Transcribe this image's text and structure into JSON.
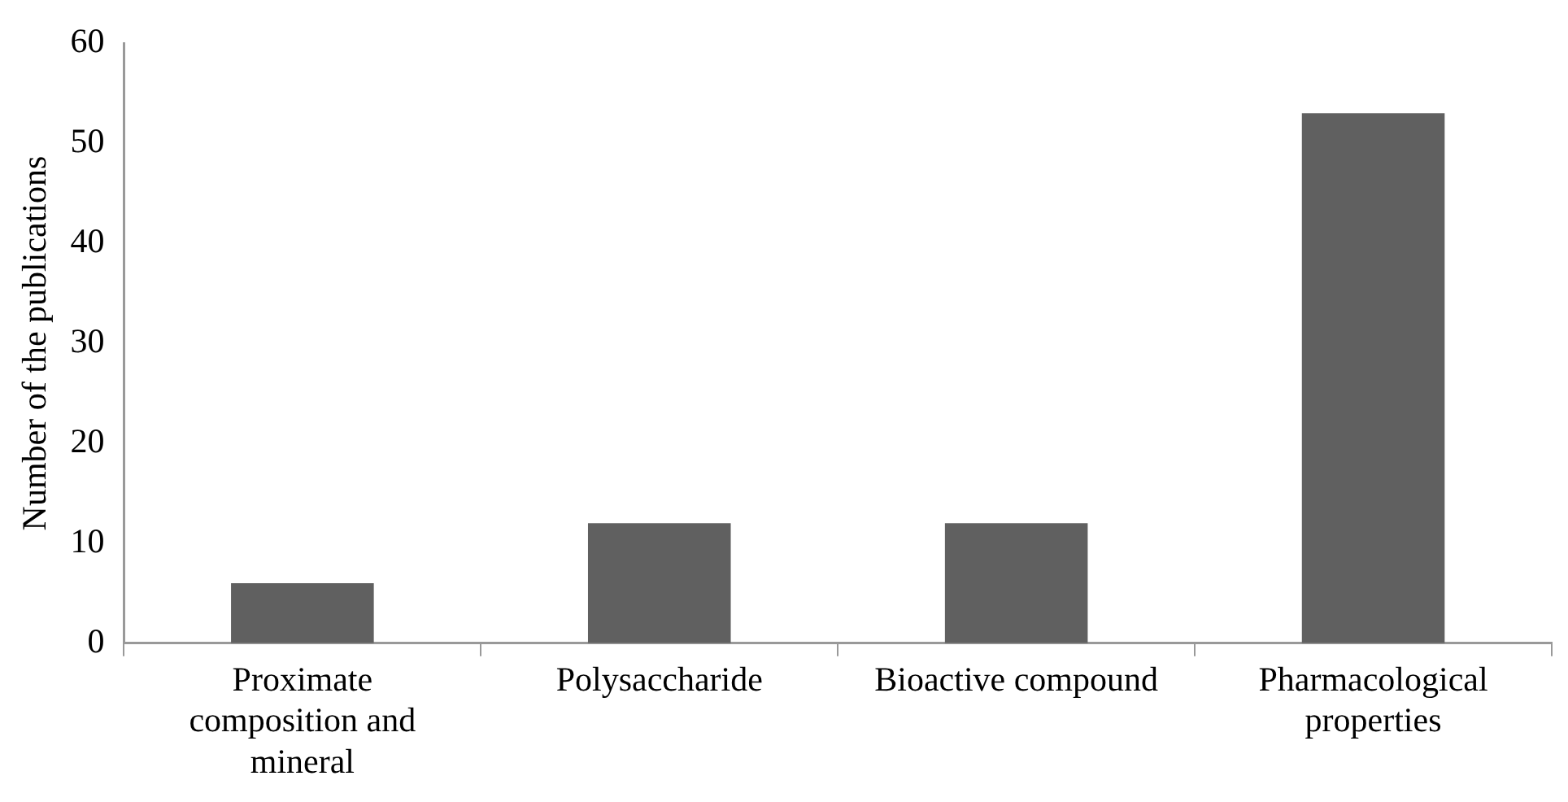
{
  "chart_data": {
    "type": "bar",
    "ylabel": "Number of the publications",
    "categories": [
      "Proximate composition and mineral",
      "Polysaccharide",
      "Bioactive compound",
      "Pharmacological properties"
    ],
    "values": [
      6,
      12,
      12,
      53
    ],
    "color": "#606060",
    "ylim": [
      0,
      60
    ],
    "yticks": [
      0,
      10,
      20,
      30,
      40,
      50,
      60
    ],
    "grid": false,
    "legend": false
  }
}
